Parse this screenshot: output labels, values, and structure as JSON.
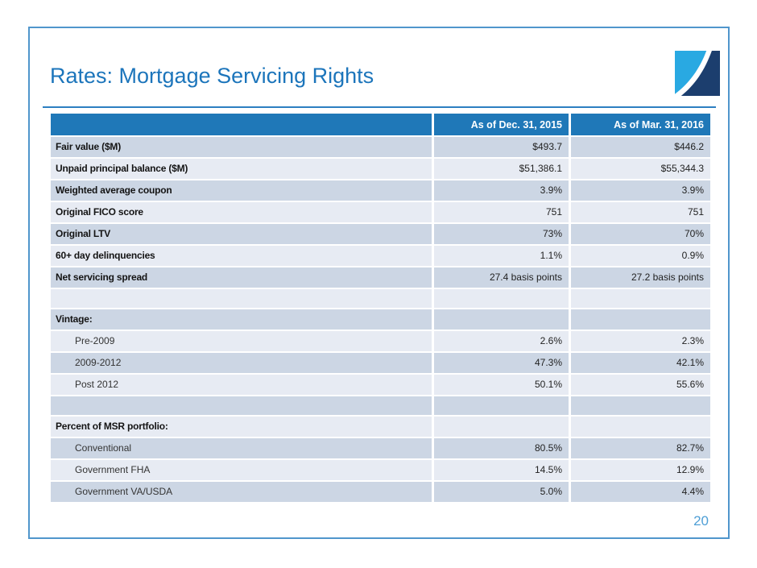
{
  "slide": {
    "title": "Rates: Mortgage Servicing Rights",
    "page_number": "20"
  },
  "logo": {
    "name": "two-tone-swoosh-logo"
  },
  "table": {
    "columns": [
      "",
      "As of Dec. 31, 2015",
      "As of Mar. 31, 2016"
    ],
    "rows": [
      {
        "label": "Fair value ($M)",
        "indent": false,
        "values": [
          "$493.7",
          "$446.2"
        ]
      },
      {
        "label": "Unpaid principal balance ($M)",
        "indent": false,
        "values": [
          "$51,386.1",
          "$55,344.3"
        ]
      },
      {
        "label": "Weighted average coupon",
        "indent": false,
        "values": [
          "3.9%",
          "3.9%"
        ]
      },
      {
        "label": "Original FICO score",
        "indent": false,
        "values": [
          "751",
          "751"
        ]
      },
      {
        "label": "Original LTV",
        "indent": false,
        "values": [
          "73%",
          "70%"
        ]
      },
      {
        "label": "60+ day delinquencies",
        "indent": false,
        "values": [
          "1.1%",
          "0.9%"
        ]
      },
      {
        "label": "Net servicing spread",
        "indent": false,
        "values": [
          "27.4 basis points",
          "27.2 basis points"
        ]
      },
      {
        "label": "",
        "indent": false,
        "values": [
          "",
          ""
        ]
      },
      {
        "label": "Vintage:",
        "indent": false,
        "values": [
          "",
          ""
        ]
      },
      {
        "label": "Pre-2009",
        "indent": true,
        "values": [
          "2.6%",
          "2.3%"
        ]
      },
      {
        "label": "2009-2012",
        "indent": true,
        "values": [
          "47.3%",
          "42.1%"
        ]
      },
      {
        "label": "Post 2012",
        "indent": true,
        "values": [
          "50.1%",
          "55.6%"
        ]
      },
      {
        "label": "",
        "indent": false,
        "values": [
          "",
          ""
        ]
      },
      {
        "label": "Percent of MSR portfolio:",
        "indent": false,
        "values": [
          "",
          ""
        ]
      },
      {
        "label": "Conventional",
        "indent": true,
        "values": [
          "80.5%",
          "82.7%"
        ]
      },
      {
        "label": "Government FHA",
        "indent": true,
        "values": [
          "14.5%",
          "12.9%"
        ]
      },
      {
        "label": "Government VA/USDA",
        "indent": true,
        "values": [
          "5.0%",
          "4.4%"
        ]
      }
    ]
  },
  "colors": {
    "header_bg": "#1f78b8",
    "row_dark": "#ccd6e4",
    "row_light": "#e7ebf3",
    "title": "#1c75bb",
    "rule": "#2d7fc1",
    "border": "#5096cc",
    "page": "#4f9fd6",
    "logo_light": "#29a9e2",
    "logo_dark": "#1c3e6e"
  }
}
